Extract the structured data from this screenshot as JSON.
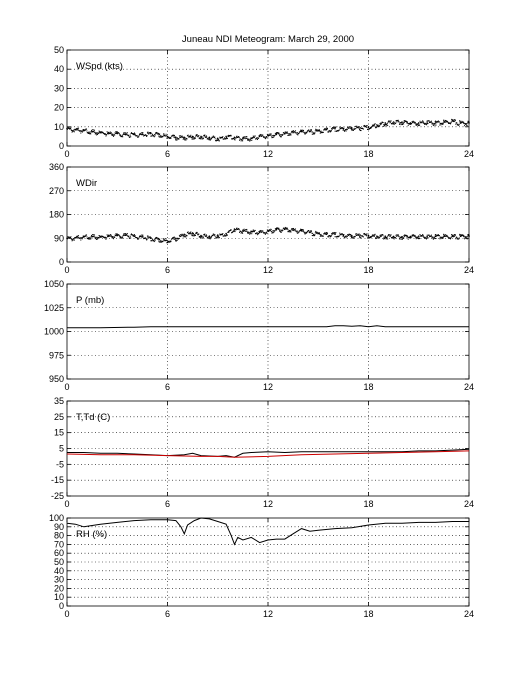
{
  "title": "Juneau NDI Meteogram:      March 29, 2000",
  "chart_data": [
    {
      "type": "scatter",
      "label": "WSpd (kts)",
      "x_ticks": [
        0,
        6,
        12,
        18,
        24
      ],
      "xlim": [
        0,
        24
      ],
      "ylim": [
        0,
        50
      ],
      "y_ticks": [
        0,
        10,
        20,
        30,
        40,
        50
      ],
      "grid": true,
      "series": [
        {
          "color": "#000000",
          "style": "dots",
          "x": [
            0,
            0.5,
            1,
            1.5,
            2,
            2.5,
            3,
            3.5,
            4,
            4.5,
            5,
            5.5,
            6,
            6.5,
            7,
            7.5,
            8,
            8.5,
            9,
            9.5,
            10,
            10.5,
            11,
            11.5,
            12,
            12.5,
            13,
            13.5,
            14,
            14.5,
            15,
            15.5,
            16,
            16.5,
            17,
            17.5,
            18,
            18.5,
            19,
            19.5,
            20,
            20.5,
            21,
            21.5,
            22,
            22.5,
            23,
            23.5,
            24
          ],
          "y": [
            9,
            8.5,
            8,
            7.5,
            7,
            6.5,
            6.5,
            6,
            6,
            6,
            6.5,
            6,
            5,
            4.5,
            4.5,
            5,
            5,
            4.5,
            4,
            5,
            4.5,
            4,
            4,
            5,
            5.5,
            6,
            6.5,
            7,
            7.5,
            7.5,
            8,
            8.5,
            9,
            9,
            9.5,
            9.5,
            10,
            11,
            12,
            12.5,
            12.5,
            12,
            12,
            12.5,
            12,
            12.5,
            13,
            12,
            12
          ]
        }
      ]
    },
    {
      "type": "scatter",
      "label": "WDir",
      "x_ticks": [
        0,
        6,
        12,
        18,
        24
      ],
      "xlim": [
        0,
        24
      ],
      "ylim": [
        0,
        360
      ],
      "y_ticks": [
        0,
        90,
        180,
        270,
        360
      ],
      "grid": true,
      "series": [
        {
          "color": "#000000",
          "style": "dots",
          "x": [
            0,
            0.5,
            1,
            1.5,
            2,
            2.5,
            3,
            3.5,
            4,
            4.5,
            5,
            5.5,
            6,
            6.5,
            7,
            7.5,
            8,
            8.5,
            9,
            9.5,
            10,
            10.5,
            11,
            11.5,
            12,
            12.5,
            13,
            13.5,
            14,
            14.5,
            15,
            15.5,
            16,
            16.5,
            17,
            17.5,
            18,
            18.5,
            19,
            19.5,
            20,
            20.5,
            21,
            21.5,
            22,
            22.5,
            23,
            23.5,
            24
          ],
          "y": [
            90,
            92,
            95,
            97,
            95,
            98,
            100,
            102,
            98,
            95,
            90,
            85,
            80,
            90,
            105,
            110,
            100,
            98,
            102,
            108,
            125,
            118,
            115,
            112,
            118,
            122,
            125,
            120,
            118,
            112,
            108,
            105,
            105,
            102,
            100,
            102,
            100,
            98,
            98,
            97,
            96,
            97,
            98,
            97,
            97,
            98,
            97,
            98,
            98
          ]
        }
      ]
    },
    {
      "type": "line",
      "label": "P (mb)",
      "x_ticks": [
        0,
        6,
        12,
        18,
        24
      ],
      "xlim": [
        0,
        24
      ],
      "ylim": [
        950,
        1050
      ],
      "y_ticks": [
        950,
        975,
        1000,
        1025,
        1050
      ],
      "grid": true,
      "series": [
        {
          "color": "#000000",
          "x": [
            0,
            2,
            4,
            5,
            6,
            8,
            10,
            12,
            14,
            15.5,
            16,
            16.5,
            17,
            17.5,
            18,
            18.5,
            19,
            20,
            22,
            24
          ],
          "y": [
            1004,
            1004,
            1004.5,
            1005,
            1005,
            1005,
            1005,
            1005,
            1005,
            1005,
            1006,
            1006,
            1005.5,
            1006,
            1005,
            1006,
            1005,
            1005,
            1005,
            1005
          ]
        }
      ]
    },
    {
      "type": "line",
      "label": "T,Td (C)",
      "x_ticks": [
        0,
        6,
        12,
        18,
        24
      ],
      "xlim": [
        0,
        24
      ],
      "ylim": [
        -25,
        35
      ],
      "y_ticks": [
        -25,
        -15,
        -5,
        5,
        15,
        25,
        35
      ],
      "grid": true,
      "series": [
        {
          "color": "#000000",
          "x": [
            0,
            1,
            2,
            3,
            4,
            5,
            6,
            7,
            7.5,
            8,
            9,
            9.5,
            10,
            10.5,
            11,
            12,
            13,
            14,
            15,
            16,
            17,
            18,
            19,
            20,
            21,
            22,
            23,
            24
          ],
          "y": [
            2.5,
            2.5,
            2,
            2,
            1.5,
            1,
            0.5,
            1,
            2,
            0.5,
            0,
            0.5,
            -0.5,
            2,
            2.5,
            3,
            2.5,
            3,
            3,
            3,
            3,
            3,
            3,
            3,
            3.5,
            3.5,
            4,
            4.5
          ]
        },
        {
          "color": "#cc0000",
          "x": [
            0,
            2,
            4,
            6,
            8,
            9,
            10,
            12,
            14,
            16,
            18,
            20,
            22,
            24
          ],
          "y": [
            1.5,
            1,
            1,
            0.5,
            0,
            0,
            -0.5,
            0,
            1,
            1.5,
            2,
            2.5,
            3,
            3.5
          ]
        }
      ]
    },
    {
      "type": "line",
      "label": "RH (%)",
      "x_ticks": [
        0,
        6,
        12,
        18,
        24
      ],
      "xlim": [
        0,
        24
      ],
      "ylim": [
        0,
        100
      ],
      "y_ticks": [
        0,
        10,
        20,
        30,
        40,
        50,
        60,
        70,
        80,
        90,
        100
      ],
      "grid": true,
      "series": [
        {
          "color": "#000000",
          "x": [
            0,
            0.5,
            1,
            2,
            3,
            4,
            5,
            6,
            6.5,
            6.8,
            7,
            7.2,
            7.6,
            8,
            8.5,
            9,
            9.5,
            9.8,
            10,
            10.2,
            10.5,
            11,
            11.5,
            12,
            12.5,
            13,
            13.5,
            14,
            14.5,
            15,
            16,
            17,
            18,
            19,
            20,
            21,
            22,
            23,
            24
          ],
          "y": [
            94,
            93,
            90,
            93,
            95,
            97,
            98,
            98,
            97,
            90,
            82,
            92,
            97,
            100,
            99,
            96,
            93,
            80,
            70,
            78,
            75,
            78,
            72,
            75,
            76,
            76,
            82,
            88,
            85,
            86,
            88,
            89,
            92,
            94,
            94,
            95,
            95,
            96,
            96
          ]
        }
      ]
    }
  ]
}
